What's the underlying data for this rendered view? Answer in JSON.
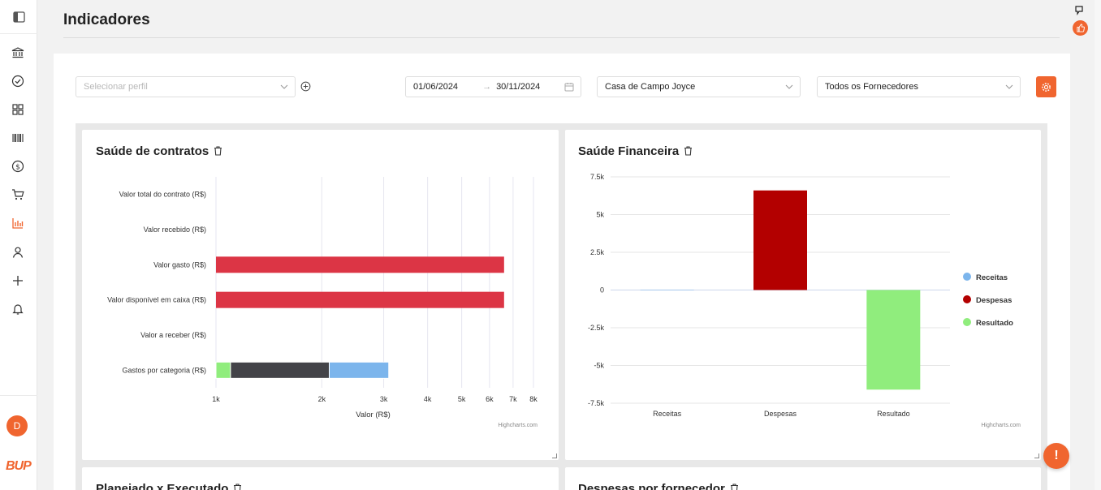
{
  "header": {
    "title": "Indicadores"
  },
  "sidebar": {
    "items": [
      {
        "icon": "bank-icon"
      },
      {
        "icon": "check-circle-icon"
      },
      {
        "icon": "grid-icon"
      },
      {
        "icon": "barcode-icon"
      },
      {
        "icon": "dollar-icon"
      },
      {
        "icon": "cart-icon"
      },
      {
        "icon": "chart-bar-icon",
        "active": true
      },
      {
        "icon": "user-icon"
      },
      {
        "icon": "plus-icon"
      },
      {
        "icon": "bell-icon"
      }
    ],
    "avatar_initial": "D",
    "logo_text": "BUP"
  },
  "filters": {
    "profile_placeholder": "Selecionar perfil",
    "date_start": "01/06/2024",
    "date_end": "30/11/2024",
    "date_separator": "→",
    "property": "Casa de Campo Joyce",
    "supplier": "Todos os Fornecedores"
  },
  "fab_label": "!",
  "colors": {
    "accent": "#f0652f",
    "red_bar": "#dc3545",
    "dark_bar": "#434348",
    "blue_bar": "#7cb5ec",
    "green_bar": "#90ed7d",
    "despesas": "#b30000"
  },
  "panels": {
    "contracts": {
      "title": "Saúde de contratos",
      "credit": "Highcharts.com"
    },
    "finance": {
      "title": "Saúde Financeira",
      "credit": "Highcharts.com"
    },
    "planned": {
      "title": "Planejado x Executado"
    },
    "supplier": {
      "title": "Despesas por fornecedor"
    }
  },
  "chart_data": [
    {
      "type": "bar",
      "title": "Saúde de contratos",
      "xlabel": "Valor (R$)",
      "x_scale": "log",
      "xlim": [
        1000,
        8000
      ],
      "tick_labels": [
        "1k",
        "2k",
        "3k",
        "4k",
        "5k",
        "6k",
        "7k",
        "8k"
      ],
      "tick_values": [
        1000,
        2000,
        3000,
        4000,
        5000,
        6000,
        7000,
        8000
      ],
      "categories": [
        "Valor total do contrato (R$)",
        "Valor recebido (R$)",
        "Valor gasto (R$)",
        "Valor disponível em caixa (R$)",
        "Valor a receber (R$)",
        "Gastos por categoria (R$)"
      ],
      "values": [
        null,
        null,
        6600,
        6600,
        null,
        null
      ],
      "stacked_category": "Gastos por categoria (R$)",
      "stack_segments": [
        {
          "color": "#90ed7d",
          "from": 1000,
          "to": 1100
        },
        {
          "color": "#434348",
          "from": 1100,
          "to": 2100
        },
        {
          "color": "#7cb5ec",
          "from": 2100,
          "to": 3100
        }
      ]
    },
    {
      "type": "bar",
      "title": "Saúde Financeira",
      "categories": [
        "Receitas",
        "Despesas",
        "Resultado"
      ],
      "series": [
        {
          "name": "Receitas",
          "color": "#7cb5ec",
          "values": [
            0,
            null,
            null
          ]
        },
        {
          "name": "Despesas",
          "color": "#b30000",
          "values": [
            null,
            6600,
            null
          ]
        },
        {
          "name": "Resultado",
          "color": "#90ed7d",
          "values": [
            null,
            null,
            -6600
          ]
        }
      ],
      "ylim": [
        -7500,
        7500
      ],
      "tick_labels": [
        "7.5k",
        "5k",
        "2.5k",
        "0",
        "-2.5k",
        "-5k",
        "-7.5k"
      ],
      "tick_values": [
        7500,
        5000,
        2500,
        0,
        -2500,
        -5000,
        -7500
      ],
      "legend": "right"
    }
  ]
}
